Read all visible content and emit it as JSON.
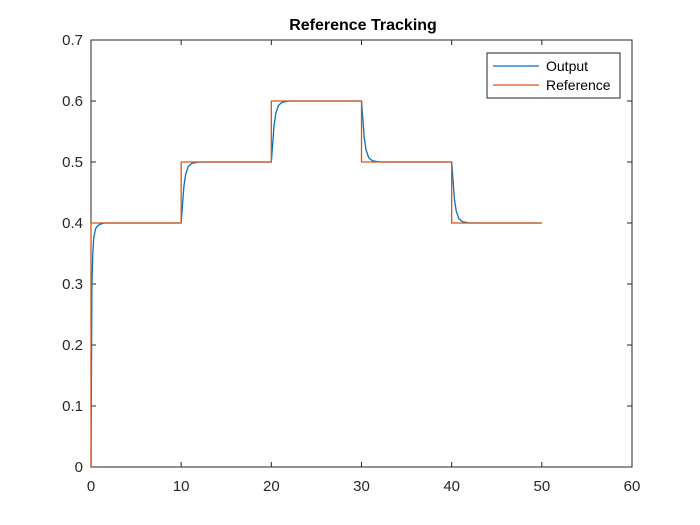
{
  "chart_data": {
    "type": "line",
    "title": "Reference Tracking",
    "xlabel": "",
    "ylabel": "",
    "xlim": [
      0,
      60
    ],
    "ylim": [
      0,
      0.7
    ],
    "xticks": [
      0,
      10,
      20,
      30,
      40,
      50,
      60
    ],
    "yticks": [
      0,
      0.1,
      0.2,
      0.3,
      0.4,
      0.5,
      0.6,
      0.7
    ],
    "xtick_labels": [
      "0",
      "10",
      "20",
      "30",
      "40",
      "50",
      "60"
    ],
    "ytick_labels": [
      "0",
      "0.1",
      "0.2",
      "0.3",
      "0.4",
      "0.5",
      "0.6",
      "0.7"
    ],
    "grid": false,
    "legend_position": "top-right",
    "series": [
      {
        "name": "Output",
        "color": "#0072BD",
        "x": [
          0,
          0.1,
          0.2,
          0.3,
          0.5,
          0.7,
          1.0,
          1.5,
          2.0,
          10,
          10.1,
          10.3,
          10.5,
          10.8,
          11.2,
          12.0,
          20,
          20.1,
          20.3,
          20.5,
          20.8,
          21.2,
          22.0,
          30,
          30.1,
          30.3,
          30.5,
          30.8,
          31.2,
          32.0,
          40,
          40.1,
          40.3,
          40.5,
          40.8,
          41.2,
          42.0,
          50
        ],
        "y": [
          0,
          0.3,
          0.35,
          0.375,
          0.39,
          0.395,
          0.398,
          0.4,
          0.4,
          0.4,
          0.42,
          0.46,
          0.48,
          0.493,
          0.498,
          0.5,
          0.5,
          0.52,
          0.56,
          0.58,
          0.593,
          0.598,
          0.6,
          0.6,
          0.58,
          0.54,
          0.52,
          0.507,
          0.502,
          0.5,
          0.5,
          0.48,
          0.44,
          0.42,
          0.407,
          0.402,
          0.4,
          0.4
        ]
      },
      {
        "name": "Reference",
        "color": "#D95319",
        "x": [
          0,
          0,
          10,
          10,
          20,
          20,
          30,
          30,
          40,
          40,
          50
        ],
        "y": [
          0,
          0.4,
          0.4,
          0.5,
          0.5,
          0.6,
          0.6,
          0.5,
          0.5,
          0.4,
          0.4
        ]
      }
    ]
  }
}
